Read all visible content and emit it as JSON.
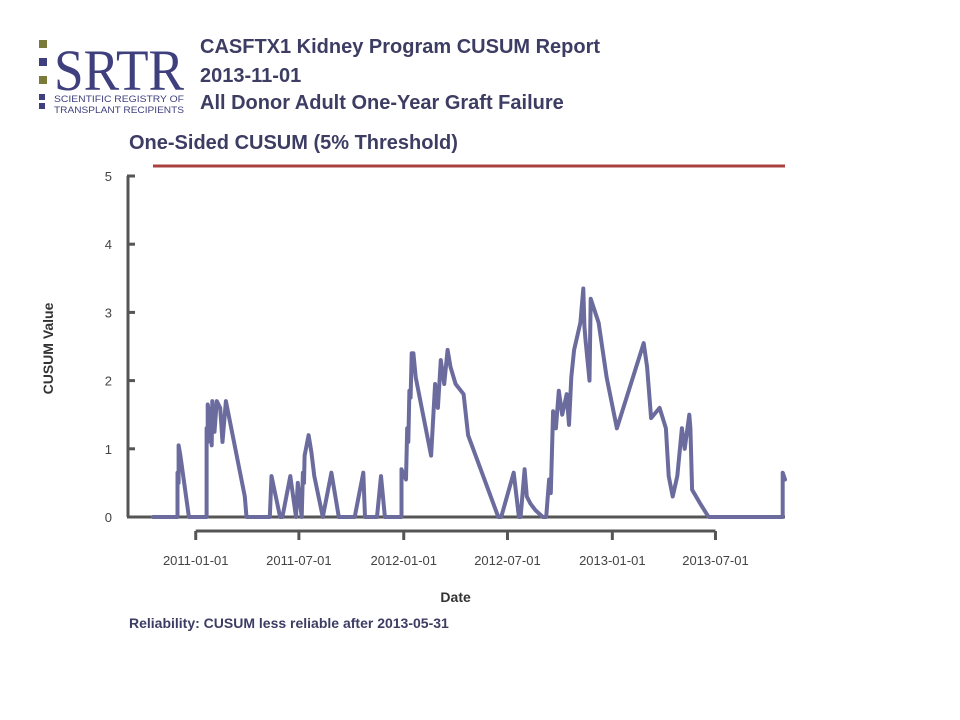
{
  "header": {
    "logo_text": "SRTR",
    "logo_subtitle_line1": "SCIENTIFIC REGISTRY OF",
    "logo_subtitle_line2": "TRANSPLANT RECIPIENTS",
    "title_line1": "CASFTX1 Kidney Program CUSUM Report",
    "title_line2": "2013-11-01",
    "title_line3": "All Donor Adult One-Year Graft Failure"
  },
  "footer": {
    "reliability": "Reliability: CUSUM less reliable after 2013-05-31"
  },
  "colors": {
    "series": "#6b6b9e",
    "threshold": "#a84040",
    "axis": "#555555",
    "title": "#3d3d64",
    "logo_blue": "#3f3f7e",
    "logo_olive": "#7a7a3a"
  },
  "chart_data": {
    "type": "line",
    "title": "One-Sided CUSUM (5% Threshold)",
    "xlabel": "Date",
    "ylabel": "CUSUM Value",
    "ylim": [
      0,
      5
    ],
    "yticks": [
      "0",
      "1",
      "2",
      "3",
      "4",
      "5"
    ],
    "xticks": [
      "2011-01-01",
      "2011-07-01",
      "2012-01-01",
      "2012-07-01",
      "2013-01-01",
      "2013-07-01"
    ],
    "xlim": [
      "2010-10-18",
      "2013-10-31"
    ],
    "grid": false,
    "threshold": 5,
    "series": [
      {
        "x": [
          "2010-10-18",
          "2010-11-30",
          "2010-11-30",
          "2010-12-02",
          "2010-12-02",
          "2010-12-05",
          "2010-12-20",
          "2010-12-22",
          "2011-01-20",
          "2011-01-20",
          "2011-01-22",
          "2011-01-22",
          "2011-01-25",
          "2011-01-29",
          "2011-01-30",
          "2011-02-03",
          "2011-02-07",
          "2011-02-13",
          "2011-02-17",
          "2011-02-23",
          "2011-03-28",
          "2011-03-31",
          "2011-05-11",
          "2011-05-14",
          "2011-05-29",
          "2011-06-02",
          "2011-06-16",
          "2011-06-26",
          "2011-06-29",
          "2011-07-06",
          "2011-07-08",
          "2011-07-10",
          "2011-07-11",
          "2011-07-18",
          "2011-07-23",
          "2011-07-28",
          "2011-08-12",
          "2011-08-27",
          "2011-09-09",
          "2011-10-07",
          "2011-10-22",
          "2011-10-25",
          "2011-11-15",
          "2011-11-22",
          "2011-11-29",
          "2011-12-28",
          "2011-12-28",
          "2012-01-05",
          "2012-01-07",
          "2012-01-09",
          "2012-01-11",
          "2012-01-13",
          "2012-01-15",
          "2012-01-17",
          "2012-01-18",
          "2012-01-22",
          "2012-02-18",
          "2012-02-25",
          "2012-03-01",
          "2012-03-06",
          "2012-03-12",
          "2012-03-18",
          "2012-03-23",
          "2012-04-01",
          "2012-04-15",
          "2012-04-23",
          "2012-06-15",
          "2012-06-20",
          "2012-07-12",
          "2012-07-21",
          "2012-07-24",
          "2012-07-31",
          "2012-08-04",
          "2012-08-10",
          "2012-08-19",
          "2012-09-01",
          "2012-09-07",
          "2012-09-12",
          "2012-09-15",
          "2012-09-19",
          "2012-09-24",
          "2012-09-29",
          "2012-10-05",
          "2012-10-13",
          "2012-10-17",
          "2012-10-21",
          "2012-10-26",
          "2012-11-06",
          "2012-11-11",
          "2012-11-13",
          "2012-11-15",
          "2012-11-22",
          "2012-11-24",
          "2012-12-08",
          "2012-12-22",
          "2013-01-09",
          "2013-02-25",
          "2013-03-03",
          "2013-03-10",
          "2013-03-25",
          "2013-04-05",
          "2013-04-10",
          "2013-04-17",
          "2013-04-25",
          "2013-05-03",
          "2013-05-08",
          "2013-05-16",
          "2013-05-18",
          "2013-05-21",
          "2013-06-04",
          "2013-06-19",
          "2013-10-27",
          "2013-10-27",
          "2013-10-31"
        ],
        "y": [
          0,
          0,
          0.65,
          0.5,
          1.05,
          0.9,
          0,
          0,
          0,
          1.3,
          1.1,
          1.65,
          1.5,
          1.05,
          1.7,
          1.25,
          1.7,
          1.6,
          1.1,
          1.7,
          0.3,
          0,
          0,
          0.6,
          0,
          0,
          0.6,
          0,
          0.5,
          0,
          0.65,
          0.5,
          0.9,
          1.2,
          0.95,
          0.6,
          0,
          0.65,
          0,
          0,
          0.65,
          0,
          0,
          0.6,
          0,
          0,
          0.7,
          0.55,
          1.3,
          1.1,
          1.85,
          1.75,
          2.4,
          2.3,
          2.4,
          2.05,
          0.9,
          1.95,
          1.6,
          2.3,
          1.95,
          2.45,
          2.2,
          1.95,
          1.8,
          1.2,
          0,
          0,
          0.65,
          0,
          0,
          0.7,
          0.3,
          0.2,
          0.1,
          0,
          0,
          0.55,
          0.35,
          1.55,
          1.3,
          1.85,
          1.5,
          1.8,
          1.35,
          2.05,
          2.45,
          2.85,
          3.35,
          2.8,
          2.6,
          2.0,
          3.2,
          2.85,
          2.05,
          1.3,
          2.55,
          2.2,
          1.45,
          1.6,
          1.3,
          0.6,
          0.3,
          0.6,
          1.3,
          1.0,
          1.5,
          1.3,
          0.4,
          0.2,
          0,
          0,
          0.65,
          0.55
        ]
      }
    ]
  }
}
